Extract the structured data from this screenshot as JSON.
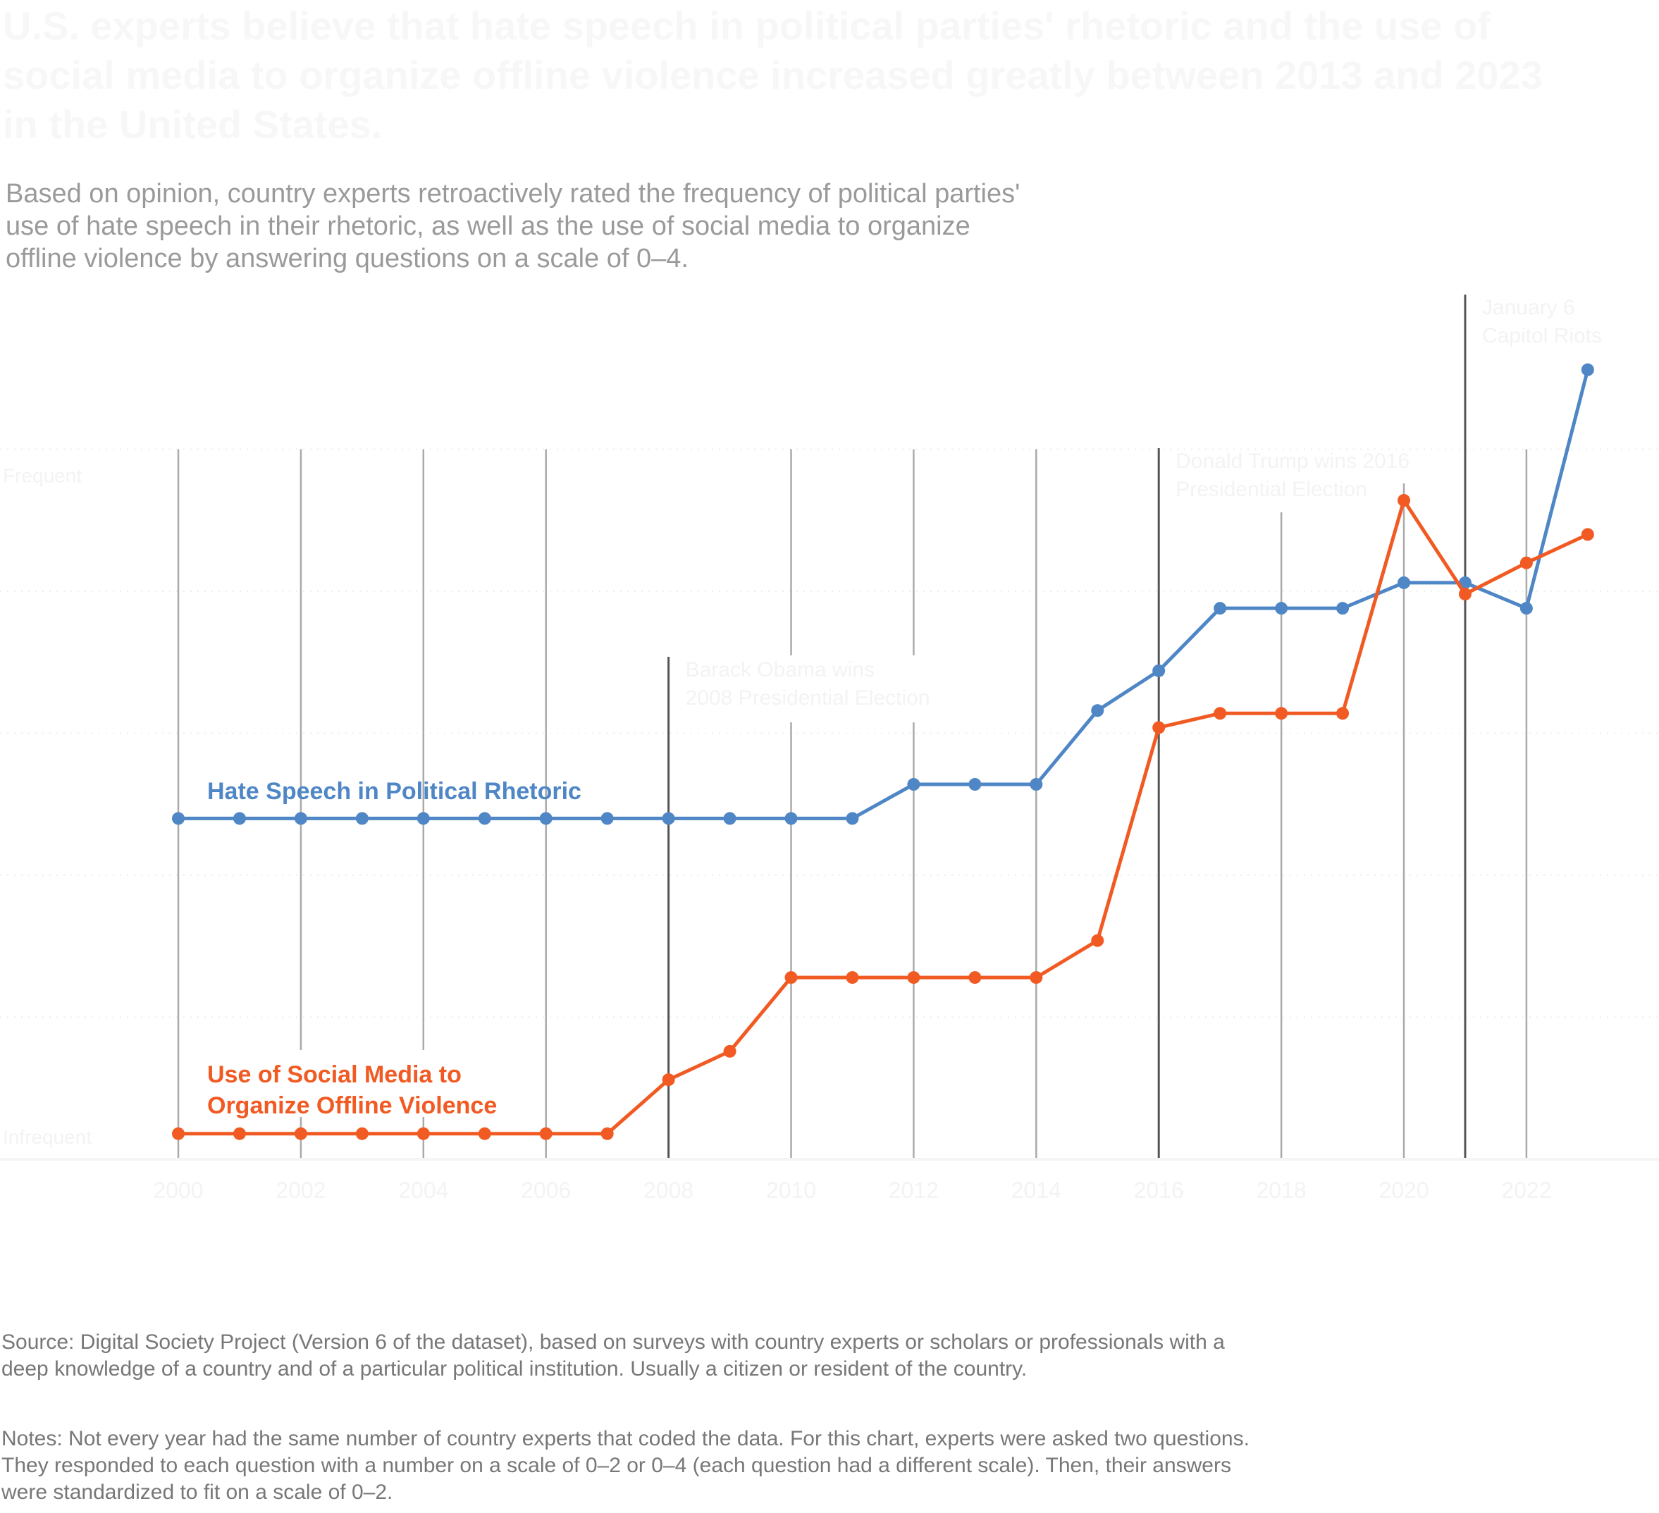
{
  "header": {
    "title": "U.S. experts believe that hate speech in political parties' rhetoric and the use of social media to organize offline violence increased greatly between 2013 and 2023 in the United States.",
    "subtitle_lines": [
      "Based on opinion, country experts retroactively rated the frequency of political parties'",
      "use of hate speech in their rhetoric, as well as the use of social media to organize",
      "offline violence by answering questions on a scale of 0–4."
    ]
  },
  "footer": {
    "source_lines": [
      "Source: Digital Society Project (Version 6 of the dataset), based on surveys with country experts or scholars or professionals with a",
      "deep knowledge of a country and of a particular political institution. Usually a citizen or resident of the country."
    ],
    "notes_lines": [
      "Notes: Not every year had the same number of country experts that coded the data. For this chart, experts were asked two questions.",
      "They responded to each question with a number on a scale of 0–2 or 0–4 (each question had a different scale). Then, their answers",
      "were standardized to fit on a scale of 0–2."
    ]
  },
  "colors": {
    "blue": "#4f86c6",
    "orange": "#f15a22",
    "event_line": "#555555",
    "year_line": "#aaaaaa",
    "faint_text": "#f3f3f3"
  },
  "chart_data": {
    "type": "line",
    "title": "U.S. experts believe that hate speech in political parties' rhetoric and the use of social media to organize offline violence increased greatly between 2013 and 2023 in the United States.",
    "xlabel": "",
    "ylabel": "",
    "y_axis_labels": {
      "top": "Frequent",
      "bottom": "Infrequent"
    },
    "x": [
      2000,
      2001,
      2002,
      2003,
      2004,
      2005,
      2006,
      2007,
      2008,
      2009,
      2010,
      2011,
      2012,
      2013,
      2014,
      2015,
      2016,
      2017,
      2018,
      2019,
      2020,
      2021,
      2022,
      2023
    ],
    "x_ticks": [
      "2000",
      "2002",
      "2004",
      "2006",
      "2008",
      "2010",
      "2012",
      "2014",
      "2016",
      "2018",
      "2020",
      "2022"
    ],
    "xlim": [
      2000,
      2023
    ],
    "ylim": [
      0,
      2.5
    ],
    "grid": true,
    "series": [
      {
        "name": "Hate Speech in Political Rhetoric",
        "label_lines": [
          "Hate Speech in Political Rhetoric"
        ],
        "color": "#4f86c6",
        "values": [
          1.2,
          1.2,
          1.2,
          1.2,
          1.2,
          1.2,
          1.2,
          1.2,
          1.2,
          1.2,
          1.2,
          1.2,
          1.32,
          1.32,
          1.32,
          1.58,
          1.72,
          1.94,
          1.94,
          1.94,
          2.03,
          2.03,
          1.94,
          2.78
        ]
      },
      {
        "name": "Use of Social Media to Organize Offline Violence",
        "label_lines": [
          "Use of Social Media to",
          "Organize Offline Violence"
        ],
        "color": "#f15a22",
        "values": [
          0.09,
          0.09,
          0.09,
          0.09,
          0.09,
          0.09,
          0.09,
          0.09,
          0.28,
          0.38,
          0.64,
          0.64,
          0.64,
          0.64,
          0.64,
          0.77,
          1.52,
          1.57,
          1.57,
          1.57,
          2.32,
          1.99,
          2.1,
          2.2
        ]
      }
    ],
    "annotations": [
      {
        "x": 2008,
        "lines": [
          "Barack Obama wins",
          "2008 Presidential Election"
        ]
      },
      {
        "x": 2016,
        "lines": [
          "Donald Trump wins 2016",
          "Presidential Election"
        ]
      },
      {
        "x": 2021,
        "lines": [
          "January 6",
          "Capitol Riots"
        ]
      }
    ]
  }
}
